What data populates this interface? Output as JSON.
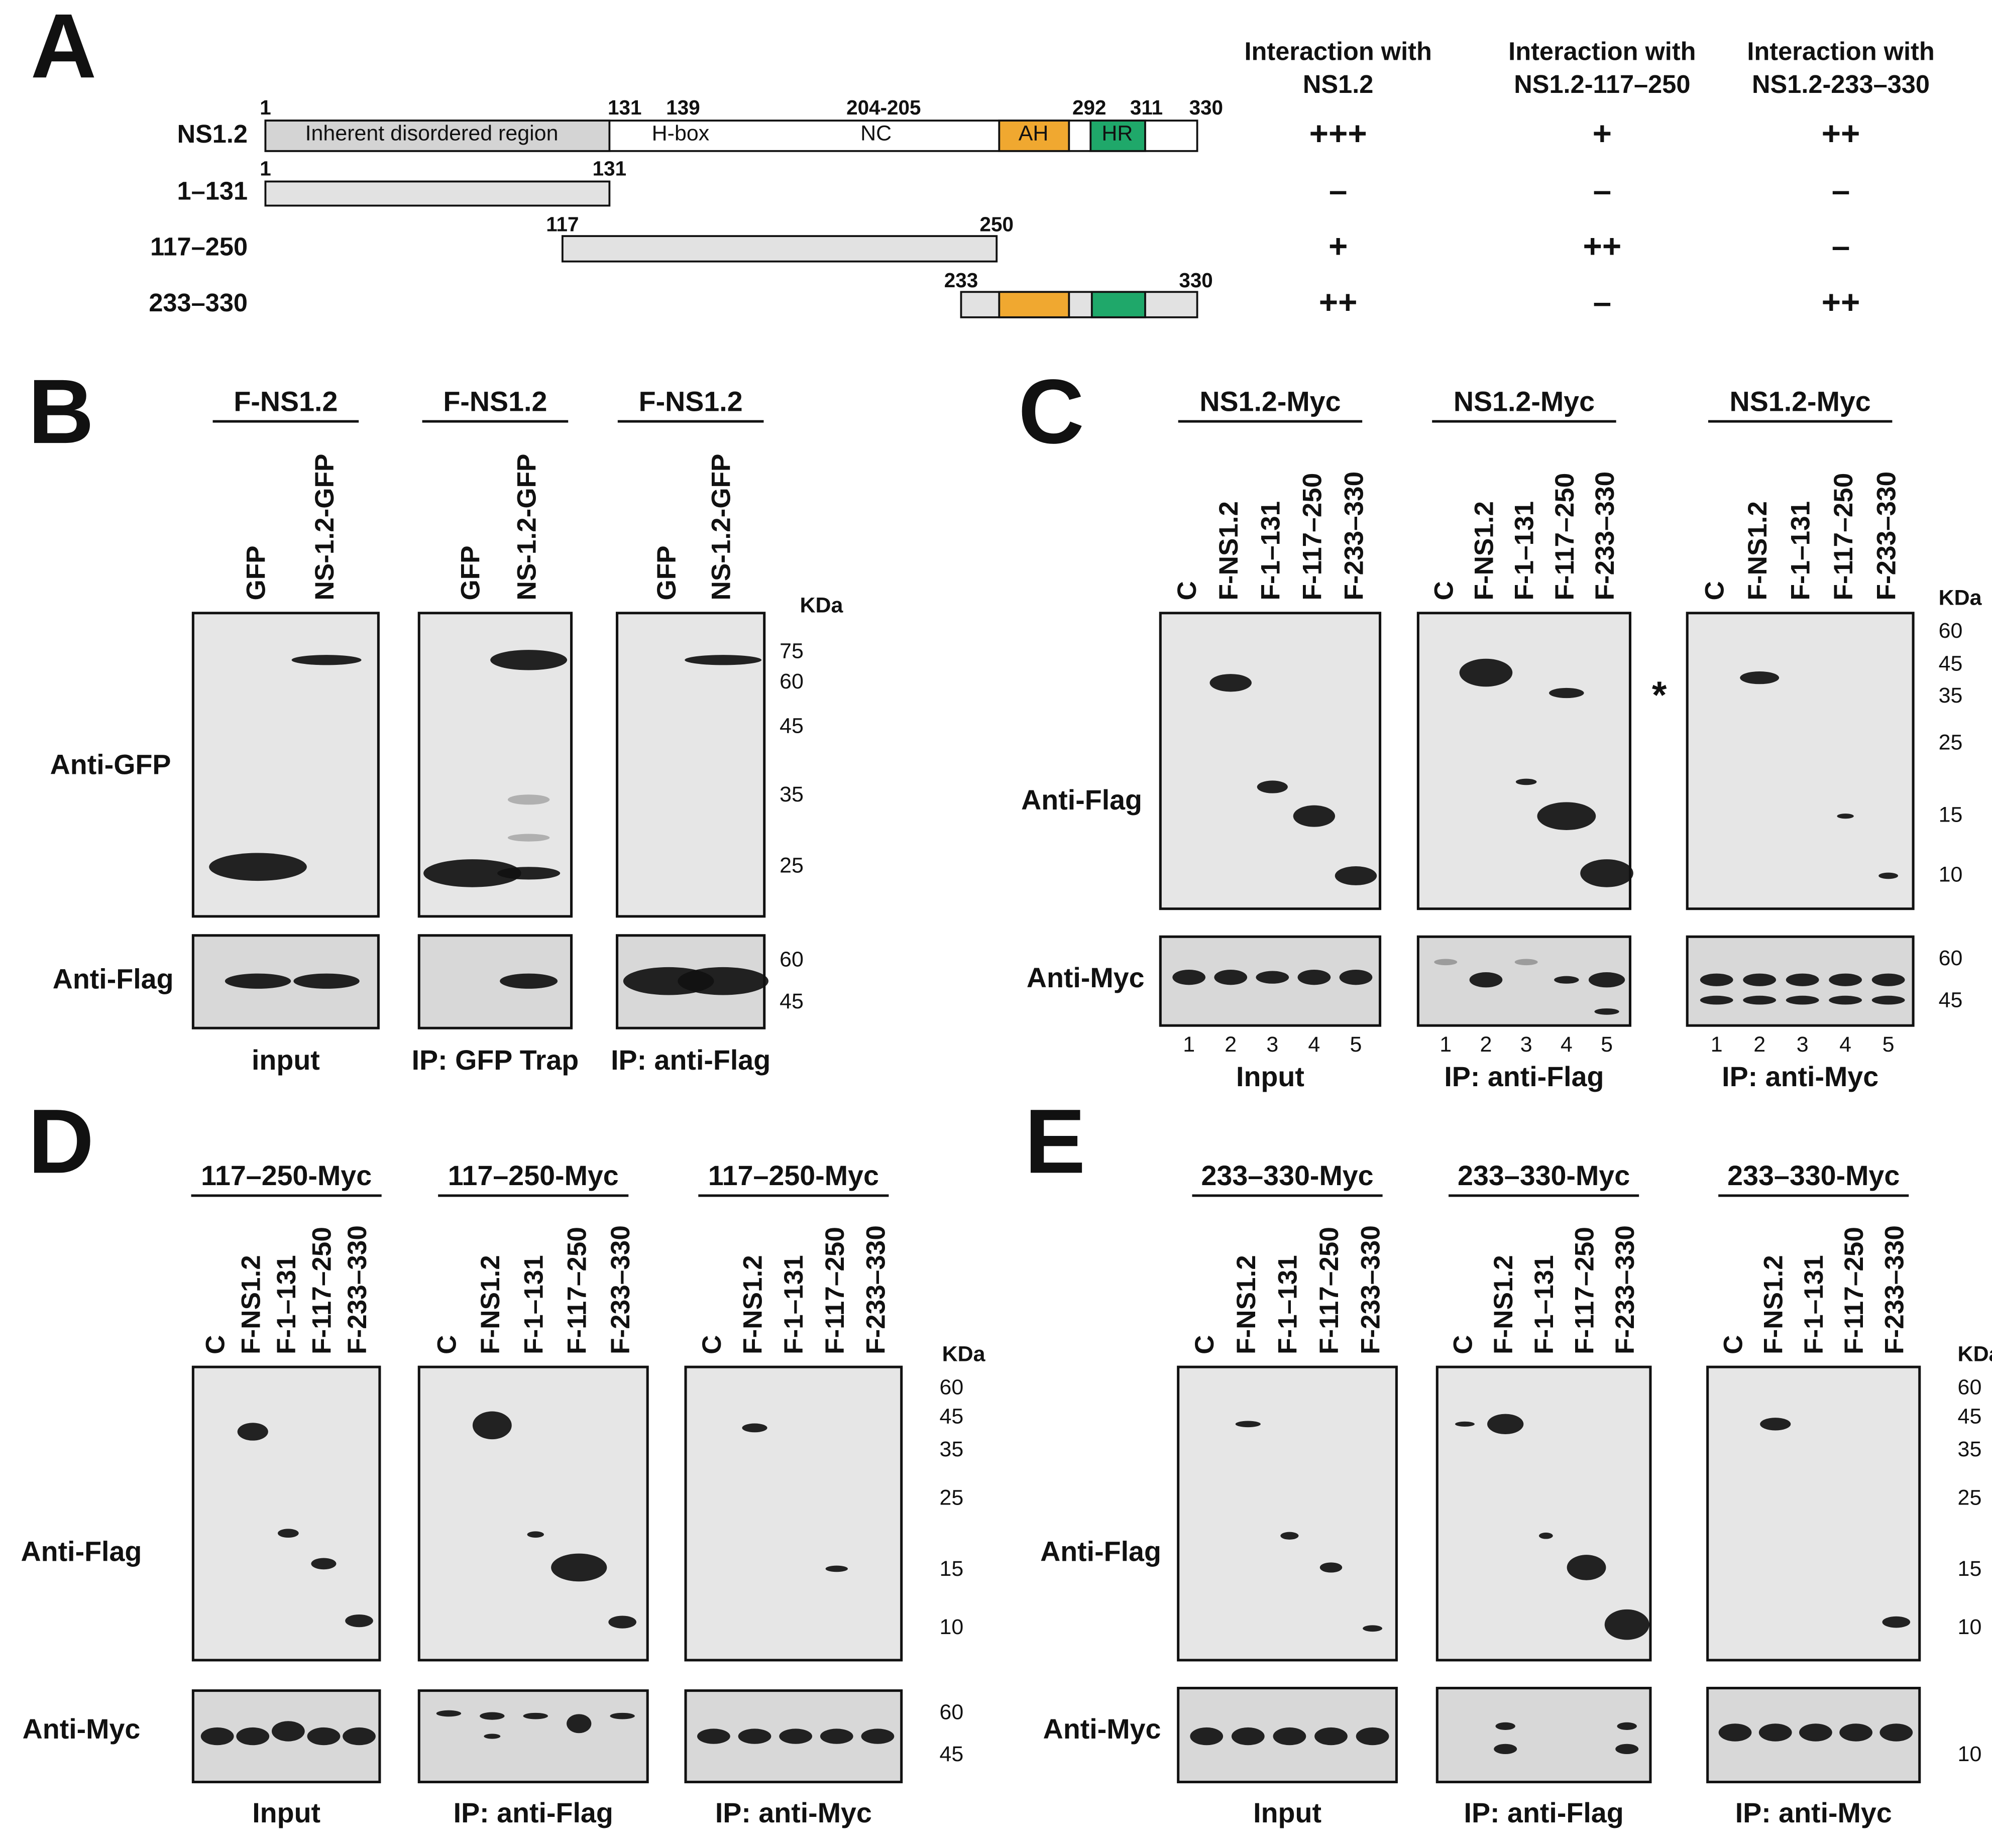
{
  "panel_a": {
    "label": "A",
    "constructs": [
      {
        "name": "NS1.2",
        "positions": [
          "1",
          "131",
          "139",
          "204-205",
          "292",
          "311",
          "330"
        ],
        "domains": [
          "Inherent disordered region",
          "H-box",
          "NC",
          "AH",
          "HR"
        ]
      },
      {
        "name": "1–131",
        "positions": [
          "1",
          "131"
        ]
      },
      {
        "name": "117–250",
        "positions": [
          "117",
          "250"
        ]
      },
      {
        "name": "233–330",
        "positions": [
          "233",
          "330"
        ]
      }
    ],
    "interaction_headers": [
      [
        "Interaction with",
        "NS1.2"
      ],
      [
        "Interaction with",
        "NS1.2-117–250"
      ],
      [
        "Interaction with",
        "NS1.2-233–330"
      ]
    ],
    "results": [
      [
        "+++",
        "+",
        "++"
      ],
      [
        "–",
        "–",
        "–"
      ],
      [
        "+",
        "++",
        "–"
      ],
      [
        "++",
        "–",
        "++"
      ]
    ]
  },
  "panel_b": {
    "label": "B",
    "groups": [
      {
        "header": "F-NS1.2",
        "lanes": [
          "GFP",
          "NS-1.2-GFP"
        ],
        "caption": "input"
      },
      {
        "header": "F-NS1.2",
        "lanes": [
          "GFP",
          "NS-1.2-GFP"
        ],
        "caption": "IP: GFP Trap"
      },
      {
        "header": "F-NS1.2",
        "lanes": [
          "GFP",
          "NS-1.2-GFP"
        ],
        "caption": "IP: anti-Flag"
      }
    ],
    "rows": [
      "Anti-GFP",
      "Anti-Flag"
    ],
    "kda": "KDa",
    "markers_top": [
      "75",
      "60",
      "45",
      "35",
      "25"
    ],
    "markers_bottom": [
      "60",
      "45"
    ]
  },
  "panel_c": {
    "label": "C",
    "groups": [
      {
        "header": "NS1.2-Myc",
        "lanes": [
          "C",
          "F-NS1.2",
          "F-1–131",
          "F-117–250",
          "F-233–330"
        ],
        "lane_numbers": [
          "1",
          "2",
          "3",
          "4",
          "5"
        ],
        "caption": "Input"
      },
      {
        "header": "NS1.2-Myc",
        "lanes": [
          "C",
          "F-NS1.2",
          "F-1–131",
          "F-117–250",
          "F-233–330"
        ],
        "lane_numbers": [
          "1",
          "2",
          "3",
          "4",
          "5"
        ],
        "caption": "IP: anti-Flag"
      },
      {
        "header": "NS1.2-Myc",
        "lanes": [
          "C",
          "F-NS1.2",
          "F-1–131",
          "F-117–250",
          "F-233–330"
        ],
        "lane_numbers": [
          "1",
          "2",
          "3",
          "4",
          "5"
        ],
        "caption": "IP: anti-Myc"
      }
    ],
    "rows": [
      "Anti-Flag",
      "Anti-Myc"
    ],
    "kda": "KDa",
    "asterisk": "*",
    "markers_top": [
      "60",
      "45",
      "35",
      "25",
      "15",
      "10"
    ],
    "markers_bottom": [
      "60",
      "45"
    ]
  },
  "panel_d": {
    "label": "D",
    "groups": [
      {
        "header": "117–250-Myc",
        "lanes": [
          "C",
          "F-NS1.2",
          "F-1–131",
          "F-117–250",
          "F-233–330"
        ],
        "caption": "Input"
      },
      {
        "header": "117–250-Myc",
        "lanes": [
          "C",
          "F-NS1.2",
          "F-1–131",
          "F-117–250",
          "F-233–330"
        ],
        "caption": "IP: anti-Flag"
      },
      {
        "header": "117–250-Myc",
        "lanes": [
          "C",
          "F-NS1.2",
          "F-1–131",
          "F-117–250",
          "F-233–330"
        ],
        "caption": "IP: anti-Myc"
      }
    ],
    "rows": [
      "Anti-Flag",
      "Anti-Myc"
    ],
    "kda": "KDa",
    "markers_top": [
      "60",
      "45",
      "35",
      "25",
      "15",
      "10"
    ],
    "markers_bottom": [
      "60",
      "45"
    ]
  },
  "panel_e": {
    "label": "E",
    "groups": [
      {
        "header": "233–330-Myc",
        "lanes": [
          "C",
          "F-NS1.2",
          "F-1–131",
          "F-117–250",
          "F-233–330"
        ],
        "caption": "Input"
      },
      {
        "header": "233–330-Myc",
        "lanes": [
          "C",
          "F-NS1.2",
          "F-1–131",
          "F-117–250",
          "F-233–330"
        ],
        "caption": "IP: anti-Flag"
      },
      {
        "header": "233–330-Myc",
        "lanes": [
          "C",
          "F-NS1.2",
          "F-1–131",
          "F-117–250",
          "F-233–330"
        ],
        "caption": "IP: anti-Myc"
      }
    ],
    "rows": [
      "Anti-Flag",
      "Anti-Myc"
    ],
    "kda": "KDa",
    "markers_top": [
      "60",
      "45",
      "35",
      "25",
      "15",
      "10"
    ],
    "markers_bottom": [
      "10"
    ]
  }
}
